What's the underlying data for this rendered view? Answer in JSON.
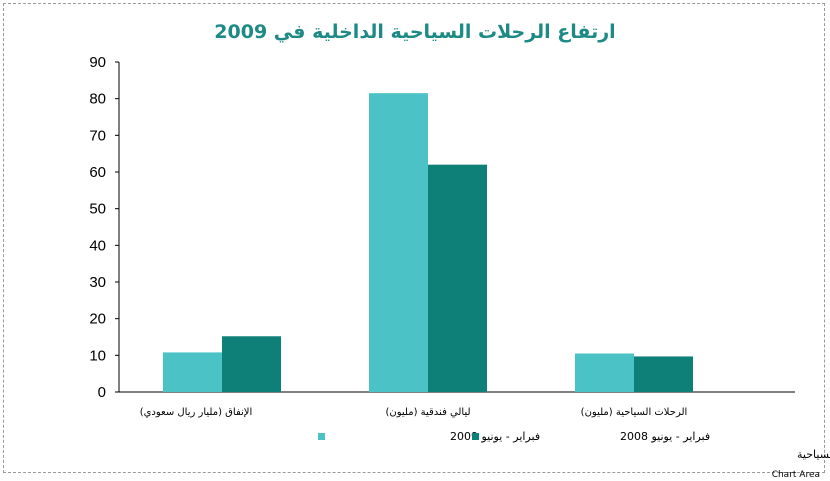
{
  "chart_data": {
    "type": "bar",
    "title": "ارتفاع الرحلات السياحية الداخلية في 2009",
    "categories": [
      "الإنفاق (مليار ريال سعودي)",
      "ليالي فندقية (مليون)",
      "الرحلات السياحية (مليون)"
    ],
    "series": [
      {
        "name": "فبراير - يونيو 2009",
        "color": "#4bc3c6",
        "values": [
          10.8,
          81.5,
          10.5
        ]
      },
      {
        "name": "فبراير - يونيو 2008",
        "color": "#0e8078",
        "values": [
          15.2,
          62,
          9.7
        ]
      }
    ],
    "ylim": [
      0,
      90
    ],
    "yticks": [
      "0",
      "10",
      "20",
      "30",
      "40",
      "50",
      "60",
      "70",
      "80",
      "90"
    ],
    "grid": false,
    "legend_position": "bottom",
    "xlabel": "",
    "ylabel": ""
  },
  "source": "المصدر: المركز السعودي للمعلومات والإبحاث السياحية",
  "chart_area_label": "Chart Area"
}
